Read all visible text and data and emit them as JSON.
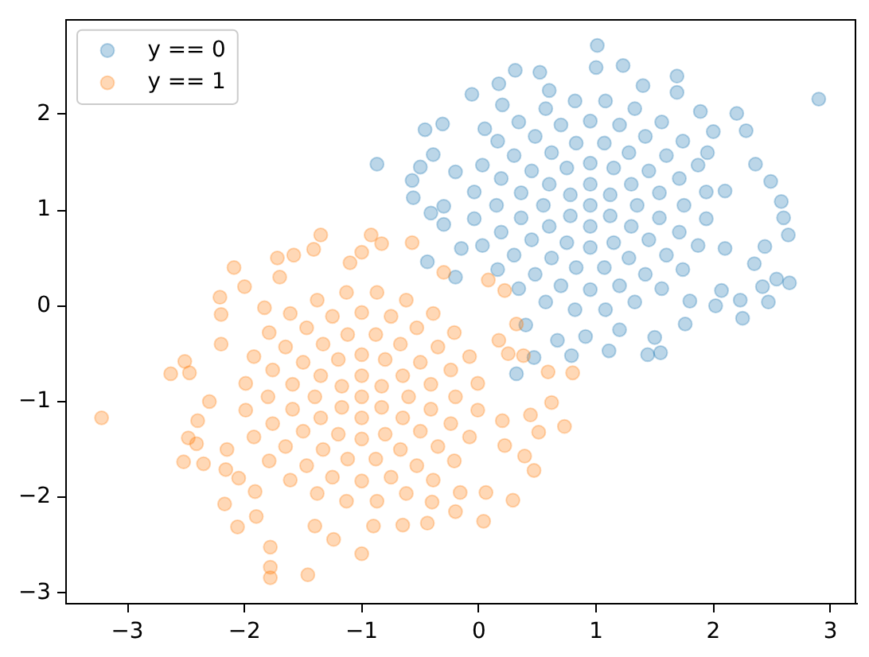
{
  "chart_data": {
    "type": "scatter",
    "xlim": [
      -3.53,
      3.22
    ],
    "ylim": [
      -3.12,
      2.99
    ],
    "xticks": [
      {
        "value": -3,
        "label": "−3"
      },
      {
        "value": -2,
        "label": "−2"
      },
      {
        "value": -1,
        "label": "−1"
      },
      0,
      1,
      2,
      3
    ],
    "yticks": [
      {
        "value": -3,
        "label": "−3"
      },
      {
        "value": -2,
        "label": "−2"
      },
      {
        "value": -1,
        "label": "−1"
      },
      0,
      1,
      2
    ],
    "legend": "top left",
    "marker": "circle",
    "series": [
      {
        "name": "y == 0",
        "color": "#1f77b4",
        "x": [
          0.95,
          1.12,
          0.95,
          0.78,
          0.78,
          0.95,
          1.12,
          1.35,
          1.3,
          1.15,
          0.95,
          0.75,
          0.6,
          0.55,
          0.6,
          0.75,
          0.95,
          1.15,
          1.3,
          1.54,
          1.45,
          1.28,
          1.07,
          0.83,
          0.62,
          0.45,
          0.36,
          0.36,
          0.45,
          0.62,
          0.83,
          1.07,
          1.28,
          1.45,
          1.54,
          1.75,
          1.71,
          1.6,
          1.42,
          1.2,
          0.95,
          0.7,
          0.48,
          0.3,
          0.19,
          0.15,
          0.19,
          0.3,
          0.48,
          0.7,
          0.95,
          1.2,
          1.42,
          1.6,
          1.71,
          1.94,
          1.87,
          1.74,
          1.56,
          1.33,
          1.08,
          0.82,
          0.57,
          0.34,
          0.16,
          0.03,
          -0.04,
          -0.04,
          0.03,
          0.16,
          0.34,
          0.57,
          0.82,
          1.08,
          1.33,
          1.56,
          1.74,
          1.87,
          1.94,
          0.05,
          0.2,
          0.6,
          1.4,
          1.95,
          2.1,
          2.1,
          1.8,
          1.2,
          0.4,
          -0.15,
          -0.2,
          1.01,
          2.9,
          -0.87,
          1.69,
          1.23,
          1.0,
          0.31,
          0.52,
          -0.06,
          0.17,
          -0.46,
          -0.31,
          -0.57,
          -0.56,
          -0.41,
          -0.5,
          -0.39,
          -0.3,
          -0.44,
          -0.3,
          -0.2,
          0.32,
          0.47,
          0.79,
          1.11,
          1.44,
          1.55,
          1.76,
          2.02,
          2.25,
          2.23,
          2.47,
          2.65,
          2.54,
          2.42,
          2.64,
          2.6,
          2.58,
          2.49,
          2.36,
          2.2,
          2.28,
          1.89,
          2.44,
          2.35,
          2.07,
          1.5,
          0.91,
          0.67,
          2.0,
          1.69
        ],
        "values": [
          1.05,
          1.16,
          1.27,
          1.16,
          0.94,
          0.83,
          0.94,
          1.05,
          1.27,
          1.44,
          1.49,
          1.44,
          1.27,
          1.05,
          0.83,
          0.66,
          0.61,
          0.66,
          0.83,
          1.18,
          1.41,
          1.6,
          1.7,
          1.7,
          1.6,
          1.41,
          1.18,
          0.92,
          0.69,
          0.5,
          0.4,
          0.4,
          0.5,
          0.69,
          0.92,
          1.05,
          1.33,
          1.57,
          1.77,
          1.89,
          1.93,
          1.89,
          1.77,
          1.57,
          1.33,
          1.05,
          0.77,
          0.53,
          0.33,
          0.21,
          0.17,
          0.21,
          0.33,
          0.53,
          0.77,
          1.19,
          1.47,
          1.72,
          1.92,
          2.06,
          2.14,
          2.14,
          2.06,
          1.92,
          1.72,
          1.47,
          1.19,
          0.91,
          0.63,
          0.38,
          0.18,
          0.04,
          -0.04,
          -0.04,
          0.04,
          0.18,
          0.38,
          0.63,
          0.91,
          1.85,
          2.1,
          2.25,
          2.3,
          1.6,
          1.2,
          0.6,
          0.05,
          -0.25,
          -0.2,
          0.6,
          1.4,
          2.72,
          2.16,
          1.48,
          2.4,
          2.51,
          2.49,
          2.46,
          2.44,
          2.21,
          2.32,
          1.84,
          1.9,
          1.31,
          1.13,
          0.97,
          1.45,
          1.58,
          1.04,
          0.46,
          0.85,
          0.3,
          -0.71,
          -0.54,
          -0.52,
          -0.47,
          -0.51,
          -0.49,
          -0.19,
          0.0,
          -0.13,
          0.06,
          0.04,
          0.24,
          0.28,
          0.2,
          0.74,
          0.92,
          1.09,
          1.3,
          1.48,
          2.01,
          1.83,
          2.03,
          0.62,
          0.44,
          0.16,
          -0.33,
          -0.32,
          -0.36,
          1.82,
          2.23
        ]
      },
      {
        "name": "y == 1",
        "color": "#ff7f0e",
        "x": [
          -1.0,
          -0.83,
          -1.0,
          -1.17,
          -1.17,
          -1.0,
          -0.83,
          -0.6,
          -0.65,
          -0.8,
          -1.0,
          -1.2,
          -1.35,
          -1.4,
          -1.35,
          -1.2,
          -1.0,
          -0.8,
          -0.65,
          -0.41,
          -0.5,
          -0.67,
          -0.88,
          -1.12,
          -1.33,
          -1.5,
          -1.59,
          -1.59,
          -1.5,
          -1.33,
          -1.12,
          -0.88,
          -0.67,
          -0.5,
          -0.41,
          -0.2,
          -0.24,
          -0.35,
          -0.53,
          -0.75,
          -1.0,
          -1.25,
          -1.47,
          -1.65,
          -1.76,
          -1.8,
          -1.76,
          -1.65,
          -1.47,
          -1.25,
          -1.0,
          -0.75,
          -0.53,
          -0.35,
          -0.24,
          -0.01,
          -0.08,
          -0.21,
          -0.39,
          -0.62,
          -0.87,
          -1.13,
          -1.38,
          -1.61,
          -1.79,
          -1.92,
          -1.99,
          -1.99,
          -1.92,
          -1.79,
          -1.61,
          -1.38,
          -1.13,
          -0.87,
          -0.62,
          -0.39,
          -0.21,
          -0.08,
          -0.01,
          -2.2,
          -2.3,
          -2.15,
          -1.9,
          -1.4,
          -0.9,
          -0.4,
          0.2,
          0.25,
          -0.3,
          -1.1,
          -1.7,
          -3.22,
          -2.63,
          -2.51,
          -2.47,
          -2.52,
          -2.35,
          -2.41,
          -2.48,
          -2.4,
          -2.09,
          -2.0,
          -2.21,
          -2.2,
          -2.17,
          -2.06,
          -2.16,
          -1.78,
          -1.78,
          -1.78,
          -1.46,
          -1.0,
          -1.24,
          -0.65,
          -0.44,
          0.04,
          0.06,
          0.29,
          0.47,
          0.73,
          0.62,
          0.51,
          0.44,
          0.8,
          0.59,
          0.38,
          -1.72,
          -1.58,
          -1.35,
          -0.92,
          -0.83,
          -0.57,
          -1.0,
          -1.83,
          0.22,
          0.08,
          0.32,
          0.17,
          -1.41,
          -2.05,
          -1.91,
          -0.16,
          -0.2,
          0.39,
          0.22
        ],
        "values": [
          -0.95,
          -0.84,
          -0.73,
          -0.84,
          -1.06,
          -1.17,
          -1.06,
          -0.95,
          -0.73,
          -0.56,
          -0.51,
          -0.56,
          -0.73,
          -0.95,
          -1.17,
          -1.34,
          -1.39,
          -1.34,
          -1.17,
          -0.82,
          -0.59,
          -0.4,
          -0.3,
          -0.3,
          -0.4,
          -0.59,
          -0.82,
          -1.08,
          -1.31,
          -1.5,
          -1.6,
          -1.6,
          -1.5,
          -1.31,
          -1.08,
          -0.95,
          -0.67,
          -0.43,
          -0.23,
          -0.11,
          -0.07,
          -0.11,
          -0.23,
          -0.43,
          -0.67,
          -0.95,
          -1.23,
          -1.47,
          -1.67,
          -1.79,
          -1.83,
          -1.79,
          -1.67,
          -1.47,
          -1.23,
          -0.81,
          -0.53,
          -0.28,
          -0.08,
          0.06,
          0.14,
          0.14,
          0.06,
          -0.08,
          -0.28,
          -0.53,
          -0.81,
          -1.09,
          -1.37,
          -1.62,
          -1.82,
          -1.96,
          -2.04,
          -2.04,
          -1.96,
          -1.82,
          -1.62,
          -1.37,
          -1.09,
          -0.4,
          -1.0,
          -1.5,
          -2.2,
          -2.3,
          -2.3,
          -2.05,
          -1.2,
          -0.5,
          0.35,
          0.45,
          0.3,
          -1.17,
          -0.71,
          -0.58,
          -0.7,
          -1.63,
          -1.65,
          -1.44,
          -1.38,
          -1.2,
          0.4,
          0.2,
          0.09,
          -0.09,
          -2.07,
          -2.31,
          -1.71,
          -2.52,
          -2.73,
          -2.84,
          -2.81,
          -2.59,
          -2.44,
          -2.29,
          -2.27,
          -2.25,
          -1.95,
          -2.03,
          -1.72,
          -1.26,
          -1.01,
          -1.32,
          -1.14,
          -0.7,
          -0.69,
          -0.52,
          0.5,
          0.53,
          0.74,
          0.74,
          0.65,
          0.66,
          0.56,
          -0.02,
          0.16,
          0.27,
          -0.19,
          -0.36,
          0.59,
          -1.8,
          -1.94,
          -1.95,
          -2.15,
          -1.57,
          -1.46
        ]
      }
    ]
  }
}
